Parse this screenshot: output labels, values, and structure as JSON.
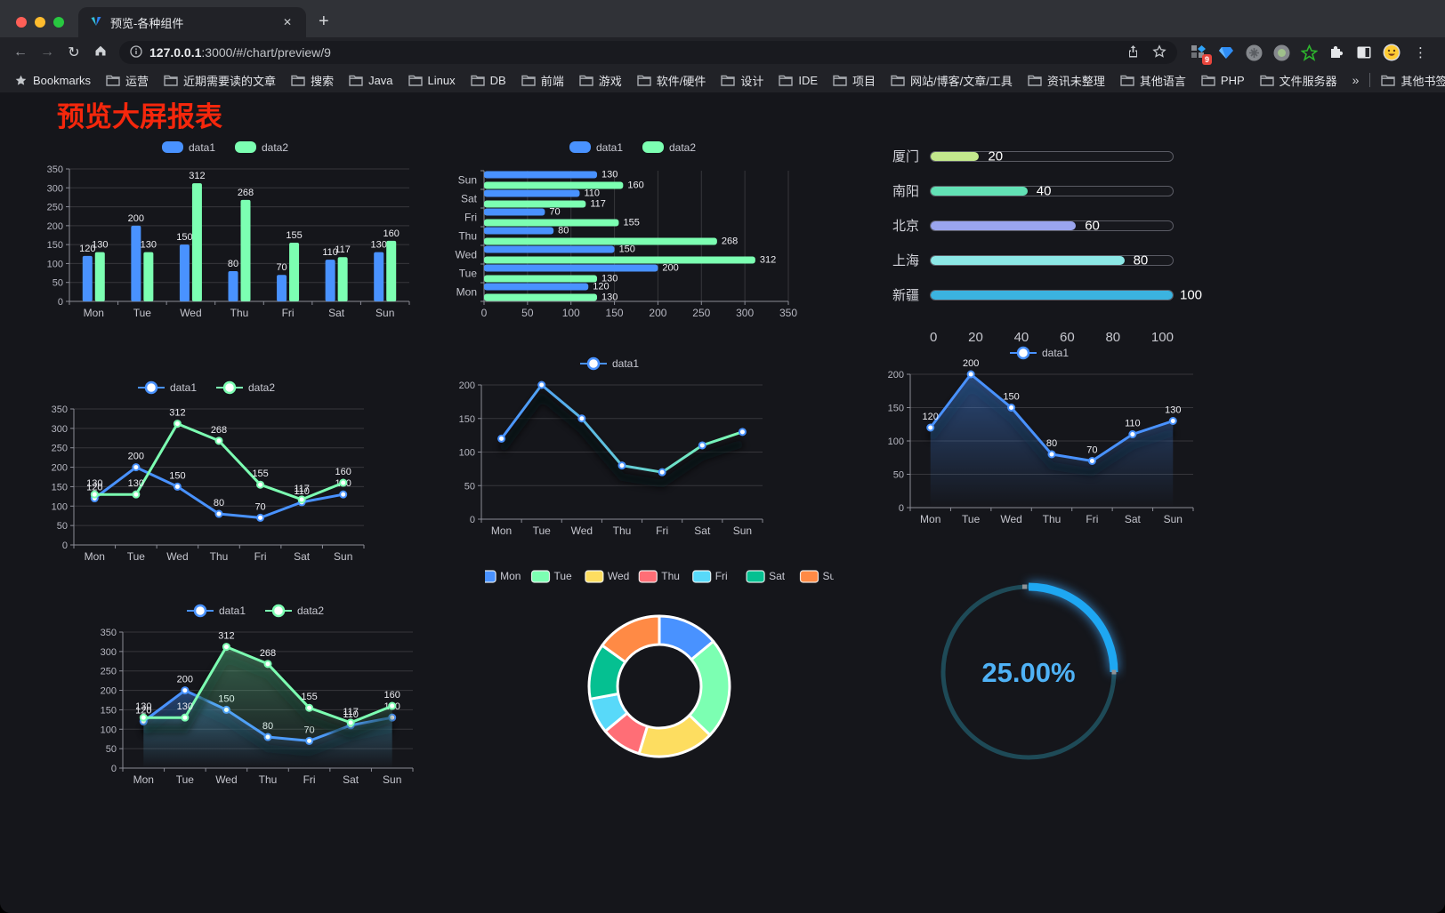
{
  "browser": {
    "traffic_lights": {
      "close": "#ff5f57",
      "minimize": "#febc2e",
      "zoom": "#28c840"
    },
    "tab": {
      "title": "预览-各种组件",
      "close_glyph": "✕",
      "new_tab_glyph": "+"
    },
    "toolbar": {
      "back_glyph": "←",
      "forward_glyph": "→",
      "reload_glyph": "↻",
      "url_host": "127.0.0.1",
      "url_rest": ":3000/#/chart/preview/9",
      "extension_badge": "9",
      "kebab_glyph": "⋮"
    },
    "bookmarks": {
      "bookmarks_label": "Bookmarks",
      "items": [
        "运营",
        "近期需要读的文章",
        "搜索",
        "Java",
        "Linux",
        "DB",
        "前端",
        "游戏",
        "软件/硬件",
        "设计",
        "IDE",
        "项目",
        "网站/博客/文章/工具",
        "资讯未整理",
        "其他语言",
        "PHP",
        "文件服务器"
      ],
      "overflow_glyph": "»",
      "other_label": "其他书签"
    }
  },
  "page": {
    "title": "预览大屏报表"
  },
  "colors": {
    "title_red": "#f5270c",
    "series_blue": "#4992ff",
    "series_green": "#7cffb2",
    "axis_text": "#c4c5cd",
    "grid_line": "rgba(255,255,255,0.14)",
    "gauge_blue": "#1ea7f2"
  },
  "chart_data": [
    {
      "name": "grouped-bar",
      "type": "bar",
      "categories": [
        "Mon",
        "Tue",
        "Wed",
        "Thu",
        "Fri",
        "Sat",
        "Sun"
      ],
      "series": [
        {
          "name": "data1",
          "color": "#4992ff",
          "values": [
            120,
            200,
            150,
            80,
            70,
            110,
            130
          ]
        },
        {
          "name": "data2",
          "color": "#7cffb2",
          "values": [
            130,
            130,
            312,
            268,
            155,
            117,
            160
          ]
        }
      ],
      "ylim": [
        0,
        350
      ],
      "ystep": 50,
      "labels": true,
      "legend_position": "top"
    },
    {
      "name": "grouped-horizontal-bar",
      "type": "hbar",
      "categories": [
        "Mon",
        "Tue",
        "Wed",
        "Thu",
        "Fri",
        "Sat",
        "Sun"
      ],
      "series": [
        {
          "name": "data1",
          "color": "#4992ff",
          "values": [
            120,
            200,
            150,
            80,
            70,
            110,
            130
          ]
        },
        {
          "name": "data2",
          "color": "#7cffb2",
          "values": [
            130,
            130,
            312,
            268,
            155,
            117,
            160
          ]
        }
      ],
      "xlim": [
        0,
        350
      ],
      "xstep": 50,
      "labels": true,
      "legend_position": "top"
    },
    {
      "name": "city-progress-bars",
      "type": "progress",
      "rows": [
        {
          "label": "厦门",
          "value": 20,
          "color": "#c3e88d"
        },
        {
          "label": "南阳",
          "value": 40,
          "color": "#62e1b5"
        },
        {
          "label": "北京",
          "value": 60,
          "color": "#9aa5ee"
        },
        {
          "label": "上海",
          "value": 80,
          "color": "#8ce8e6"
        },
        {
          "label": "新疆",
          "value": 100,
          "color": "#3bb3e0"
        }
      ],
      "xlim": [
        0,
        100
      ],
      "xticks": [
        0,
        20,
        40,
        60,
        80,
        100
      ]
    },
    {
      "name": "two-line",
      "type": "line",
      "categories": [
        "Mon",
        "Tue",
        "Wed",
        "Thu",
        "Fri",
        "Sat",
        "Sun"
      ],
      "series": [
        {
          "name": "data1",
          "color": "#4992ff",
          "values": [
            120,
            200,
            150,
            80,
            70,
            110,
            130
          ]
        },
        {
          "name": "data2",
          "color": "#7cffb2",
          "values": [
            130,
            130,
            312,
            268,
            155,
            117,
            160
          ]
        }
      ],
      "ylim": [
        0,
        350
      ],
      "ystep": 50,
      "labels": true,
      "legend_position": "top"
    },
    {
      "name": "gradient-line",
      "type": "line",
      "categories": [
        "Mon",
        "Tue",
        "Wed",
        "Thu",
        "Fri",
        "Sat",
        "Sun"
      ],
      "series": [
        {
          "name": "data1",
          "gradient": [
            "#4992ff",
            "#7cffb2"
          ],
          "values": [
            120,
            200,
            150,
            80,
            70,
            110,
            130
          ]
        }
      ],
      "ylim": [
        0,
        200
      ],
      "ystep": 50,
      "labels": false,
      "shadow": true,
      "legend_position": "top"
    },
    {
      "name": "single-area-line",
      "type": "line",
      "categories": [
        "Mon",
        "Tue",
        "Wed",
        "Thu",
        "Fri",
        "Sat",
        "Sun"
      ],
      "series": [
        {
          "name": "data1",
          "color": "#4992ff",
          "values": [
            120,
            200,
            150,
            80,
            70,
            110,
            130
          ],
          "area": true,
          "area_from": "rgba(73,146,255,0.42)",
          "area_to": "rgba(73,146,255,0)"
        }
      ],
      "ylim": [
        0,
        200
      ],
      "ystep": 50,
      "labels": true,
      "shadow": true,
      "legend_position": "top"
    },
    {
      "name": "double-area-line",
      "type": "line",
      "categories": [
        "Mon",
        "Tue",
        "Wed",
        "Thu",
        "Fri",
        "Sat",
        "Sun"
      ],
      "series": [
        {
          "name": "data1",
          "color": "#4992ff",
          "values": [
            120,
            200,
            150,
            80,
            70,
            110,
            130
          ],
          "area": true,
          "area_from": "rgba(73,146,255,0.40)",
          "area_to": "rgba(73,146,255,0)"
        },
        {
          "name": "data2",
          "color": "#7cffb2",
          "values": [
            130,
            130,
            312,
            268,
            155,
            117,
            160
          ],
          "area": true,
          "area_from": "rgba(124,255,178,0.32)",
          "area_to": "rgba(124,255,178,0)"
        }
      ],
      "ylim": [
        0,
        350
      ],
      "ystep": 50,
      "labels": true,
      "shadow": true,
      "legend_position": "top"
    },
    {
      "name": "weekday-donut",
      "type": "pie",
      "categories": [
        "Mon",
        "Tue",
        "Wed",
        "Thu",
        "Fri",
        "Sat",
        "Sun"
      ],
      "values": [
        120,
        200,
        150,
        80,
        70,
        110,
        130
      ],
      "colors": [
        "#4992ff",
        "#7cffb2",
        "#fddd60",
        "#ff6e76",
        "#58d9f9",
        "#05c091",
        "#ff8a45"
      ],
      "legend_position": "top"
    },
    {
      "name": "percent-gauge",
      "type": "gauge",
      "value": 25,
      "display": "25.00%",
      "color": "#1ea7f2",
      "track_color": "#1e4a57",
      "text_color": "#4fb2f6"
    }
  ]
}
